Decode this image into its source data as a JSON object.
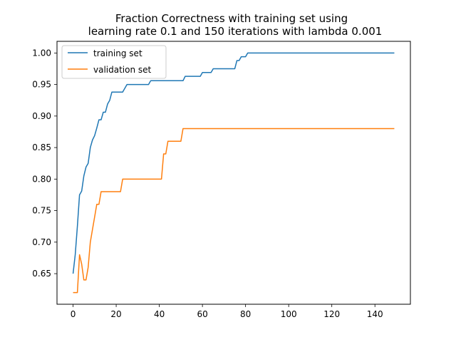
{
  "chart_data": {
    "type": "line",
    "title": [
      "Fraction Correctness with training set using",
      "learning rate 0.1 and 150 iterations with lambda 0.001"
    ],
    "xlabel": "",
    "ylabel": "",
    "xlim": [
      -7.45,
      156.45
    ],
    "ylim": [
      0.6015,
      1.0185
    ],
    "x_ticks": [
      0,
      20,
      40,
      60,
      80,
      100,
      120,
      140
    ],
    "y_ticks": [
      0.65,
      0.7,
      0.75,
      0.8,
      0.85,
      0.9,
      0.95,
      1.0
    ],
    "grid": false,
    "legend_position": "top-left",
    "series": [
      {
        "name": "training set",
        "color": "#1f77b4",
        "points": [
          [
            0,
            0.65
          ],
          [
            1,
            0.68
          ],
          [
            2,
            0.725
          ],
          [
            3,
            0.775
          ],
          [
            4,
            0.781
          ],
          [
            5,
            0.805
          ],
          [
            6,
            0.819
          ],
          [
            7,
            0.825
          ],
          [
            8,
            0.85
          ],
          [
            9,
            0.862
          ],
          [
            10,
            0.869
          ],
          [
            11,
            0.881
          ],
          [
            12,
            0.894
          ],
          [
            13,
            0.894
          ],
          [
            14,
            0.906
          ],
          [
            15,
            0.906
          ],
          [
            16,
            0.919
          ],
          [
            17,
            0.925
          ],
          [
            18,
            0.938
          ],
          [
            19,
            0.938
          ],
          [
            22,
            0.938
          ],
          [
            23,
            0.938
          ],
          [
            25,
            0.95
          ],
          [
            30,
            0.95
          ],
          [
            35,
            0.95
          ],
          [
            36,
            0.956
          ],
          [
            45,
            0.956
          ],
          [
            51,
            0.956
          ],
          [
            52,
            0.963
          ],
          [
            59,
            0.963
          ],
          [
            60,
            0.969
          ],
          [
            64,
            0.969
          ],
          [
            65,
            0.975
          ],
          [
            75,
            0.975
          ],
          [
            76,
            0.988
          ],
          [
            77,
            0.988
          ],
          [
            78,
            0.994
          ],
          [
            80,
            0.994
          ],
          [
            81,
            1.0
          ],
          [
            100,
            1.0
          ],
          [
            149,
            1.0
          ]
        ]
      },
      {
        "name": "validation set",
        "color": "#ff7f0e",
        "points": [
          [
            0,
            0.62
          ],
          [
            1,
            0.62
          ],
          [
            2,
            0.62
          ],
          [
            3,
            0.68
          ],
          [
            4,
            0.665
          ],
          [
            5,
            0.64
          ],
          [
            6,
            0.64
          ],
          [
            7,
            0.66
          ],
          [
            8,
            0.7
          ],
          [
            9,
            0.72
          ],
          [
            10,
            0.74
          ],
          [
            11,
            0.76
          ],
          [
            12,
            0.76
          ],
          [
            13,
            0.78
          ],
          [
            14,
            0.78
          ],
          [
            22,
            0.78
          ],
          [
            23,
            0.8
          ],
          [
            40,
            0.8
          ],
          [
            41,
            0.8
          ],
          [
            42,
            0.84
          ],
          [
            43,
            0.84
          ],
          [
            44,
            0.86
          ],
          [
            50,
            0.86
          ],
          [
            51,
            0.88
          ],
          [
            100,
            0.88
          ],
          [
            149,
            0.88
          ]
        ]
      }
    ]
  }
}
